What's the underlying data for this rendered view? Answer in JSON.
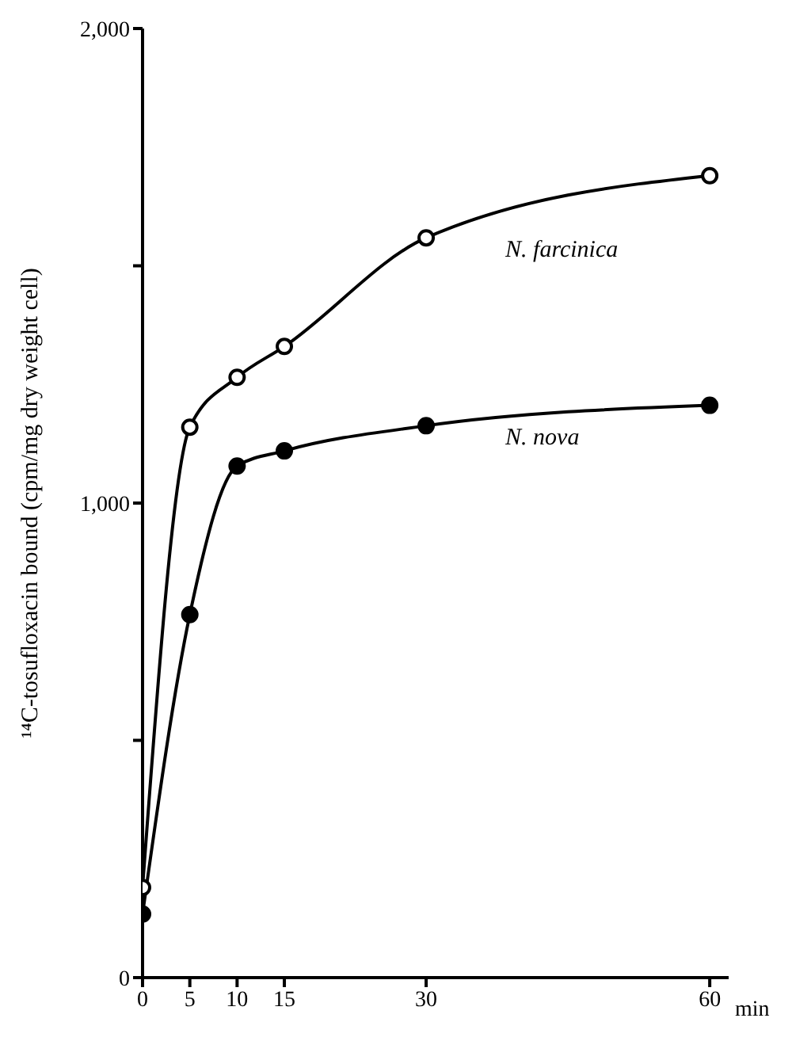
{
  "chart_data": {
    "type": "line",
    "ylabel": "¹⁴C-tosufloxacin bound (cpm/mg dry weight cell)",
    "xlabel": "min",
    "x": [
      0,
      5,
      10,
      15,
      30,
      60
    ],
    "xlim": [
      0,
      62
    ],
    "xticks": [
      0,
      5,
      10,
      15,
      30,
      60
    ],
    "ylim": [
      0,
      2000
    ],
    "yticks": [
      0,
      {
        "value": 500,
        "label": null
      },
      {
        "value": 1000,
        "label": "1,000"
      },
      {
        "value": 1500,
        "label": null
      },
      {
        "value": 2000,
        "label": "2,000"
      }
    ],
    "grid": false,
    "legend": false,
    "line_style": "solid",
    "series": [
      {
        "name": "N. farcinica",
        "color": "#000000",
        "marker": "circle_open",
        "values": [
          190,
          1160,
          1265,
          1330,
          1559,
          1690
        ]
      },
      {
        "name": "N. nova",
        "color": "#000000",
        "marker": "circle",
        "values": [
          134,
          765,
          1078,
          1110,
          1163,
          1206
        ]
      }
    ]
  }
}
